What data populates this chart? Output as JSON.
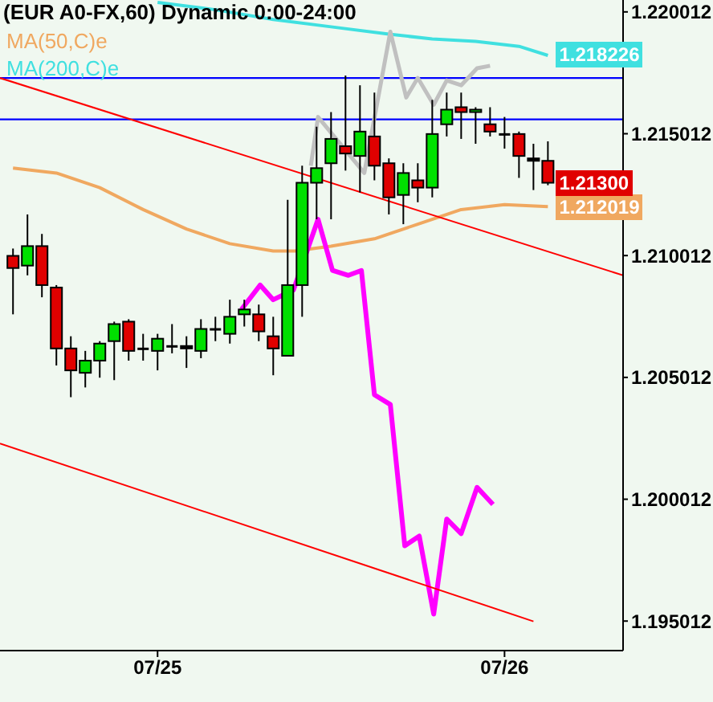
{
  "chart_data": {
    "type": "candlestick",
    "title": "(EUR A0-FX,60) Dynamic 0:00-24:00",
    "x": [
      "--07-24T14:00",
      "--07-24T15:00",
      "--07-24T16:00",
      "--07-24T17:00",
      "--07-24T18:00",
      "--07-24T19:00",
      "--07-24T20:00",
      "--07-24T21:00",
      "--07-24T22:00",
      "--07-24T23:00",
      "--07-25T00:00",
      "--07-25T01:00",
      "--07-25T02:00",
      "--07-25T03:00",
      "--07-25T04:00",
      "--07-25T05:00",
      "--07-25T06:00",
      "--07-25T07:00",
      "--07-25T08:00",
      "--07-25T09:00",
      "--07-25T10:00",
      "--07-25T11:00",
      "--07-25T12:00",
      "--07-25T13:00",
      "--07-25T14:00",
      "--07-25T15:00",
      "--07-25T16:00",
      "--07-25T17:00",
      "--07-25T18:00",
      "--07-25T19:00",
      "--07-25T20:00",
      "--07-25T21:00",
      "--07-25T22:00",
      "--07-25T23:00",
      "--07-26T00:00",
      "--07-26T01:00",
      "--07-26T02:00",
      "--07-26T03:00"
    ],
    "ohlc": [
      [
        1.21,
        1.2103,
        1.2076,
        1.2095
      ],
      [
        1.2096,
        1.2117,
        1.2092,
        1.2104
      ],
      [
        1.2104,
        1.2109,
        1.2083,
        1.2088
      ],
      [
        1.2087,
        1.2088,
        1.2055,
        1.2062
      ],
      [
        1.2062,
        1.2067,
        1.2042,
        1.2053
      ],
      [
        1.2052,
        1.2061,
        1.2046,
        1.2057
      ],
      [
        1.2057,
        1.2065,
        1.205,
        1.2064
      ],
      [
        1.2065,
        1.2073,
        1.2049,
        1.2072
      ],
      [
        1.2073,
        1.2074,
        1.2057,
        1.2061
      ],
      [
        1.2062,
        1.2068,
        1.2057,
        1.2062
      ],
      [
        1.2061,
        1.2068,
        1.2053,
        1.2066
      ],
      [
        1.2063,
        1.2072,
        1.206,
        1.2063
      ],
      [
        1.2063,
        1.2067,
        1.2054,
        1.2062
      ],
      [
        1.2061,
        1.2074,
        1.2058,
        1.207
      ],
      [
        1.207,
        1.2075,
        1.2065,
        1.207
      ],
      [
        1.2068,
        1.2082,
        1.2064,
        1.2075
      ],
      [
        1.2076,
        1.2082,
        1.2071,
        1.2078
      ],
      [
        1.2076,
        1.208,
        1.2065,
        1.2069
      ],
      [
        1.2067,
        1.2075,
        1.2051,
        1.2062
      ],
      [
        1.2059,
        1.2123,
        1.2059,
        1.2088
      ],
      [
        1.2088,
        1.2137,
        1.2075,
        1.213
      ],
      [
        1.213,
        1.2153,
        1.2115,
        1.2136
      ],
      [
        1.2138,
        1.2159,
        1.2115,
        1.2148
      ],
      [
        1.2145,
        1.2174,
        1.2135,
        1.2142
      ],
      [
        1.2141,
        1.217,
        1.2126,
        1.2151
      ],
      [
        1.2149,
        1.2167,
        1.2131,
        1.2137
      ],
      [
        1.2138,
        1.214,
        1.2117,
        1.2124
      ],
      [
        1.2125,
        1.2138,
        1.2113,
        1.2134
      ],
      [
        1.2131,
        1.2138,
        1.2122,
        1.2128
      ],
      [
        1.2128,
        1.2164,
        1.2124,
        1.215
      ],
      [
        1.2154,
        1.2167,
        1.2149,
        1.216
      ],
      [
        1.2161,
        1.2167,
        1.2148,
        1.2159
      ],
      [
        1.2159,
        1.2161,
        1.2146,
        1.216
      ],
      [
        1.2154,
        1.2161,
        1.2149,
        1.2151
      ],
      [
        1.215,
        1.2157,
        1.2144,
        1.215
      ],
      [
        1.215,
        1.2151,
        1.2132,
        1.2141
      ],
      [
        1.214,
        1.2146,
        1.2127,
        1.2139
      ],
      [
        1.2139,
        1.2147,
        1.2129,
        1.213
      ]
    ],
    "value_labels": [
      null,
      null,
      null,
      null,
      null,
      null,
      null,
      null,
      null,
      null,
      null,
      null,
      null,
      null,
      null,
      null,
      null,
      null,
      null,
      null,
      null,
      null,
      null,
      null,
      null,
      null,
      null,
      null,
      null,
      null,
      null,
      null,
      null,
      null,
      null,
      null,
      null,
      "1.21300"
    ],
    "colors": [
      "#e00000",
      "#00e000",
      "#e00000",
      "#e00000",
      "#e00000",
      "#00e000",
      "#00e000",
      "#00e000",
      "#e00000",
      "#000000",
      "#00e000",
      "#000000",
      "#000000",
      "#00e000",
      "#000000",
      "#00e000",
      "#00e000",
      "#e00000",
      "#e00000",
      "#00e000",
      "#00e000",
      "#00e000",
      "#00e000",
      "#e00000",
      "#00e000",
      "#e00000",
      "#e00000",
      "#00e000",
      "#e00000",
      "#00e000",
      "#00e000",
      "#e00000",
      "#00e000",
      "#e00000",
      "#000000",
      "#e00000",
      "#000000",
      "#e00000"
    ],
    "series": [
      {
        "type": "line",
        "name": "MA(50,C)e",
        "color": "#f0a860",
        "x": [
          "--07-24T14:00",
          "--07-24T17:00",
          "--07-24T20:00",
          "--07-24T23:00",
          "--07-25T02:00",
          "--07-25T05:00",
          "--07-25T08:00",
          "--07-25T09:30",
          "--07-25T12:00",
          "--07-25T15:00",
          "--07-25T18:00",
          "--07-25T21:00",
          "--07-26T00:00",
          "--07-26T03:00"
        ],
        "values": [
          1.2136,
          1.2134,
          1.2128,
          1.2119,
          1.2111,
          1.2105,
          1.2102,
          1.2102,
          1.2104,
          1.2107,
          1.2113,
          1.2119,
          1.2121,
          1.212019
        ],
        "value_labels": [
          null,
          null,
          null,
          null,
          null,
          null,
          null,
          null,
          null,
          null,
          null,
          null,
          null,
          "1.212019"
        ]
      },
      {
        "type": "line",
        "name": "MA(200,C)e",
        "color": "#40e0e0",
        "x": [
          "--07-25T00:00",
          "--07-25T04:00",
          "--07-25T08:00",
          "--07-25T12:00",
          "--07-25T16:00",
          "--07-25T19:00",
          "--07-25T22:00",
          "--07-26T01:00",
          "--07-26T03:00"
        ],
        "values": [
          1.2204,
          1.2201,
          1.2197,
          1.2194,
          1.2191,
          1.2189,
          1.2188,
          1.2186,
          1.218226
        ],
        "value_labels": [
          null,
          null,
          null,
          null,
          null,
          null,
          null,
          null,
          "1.218226"
        ]
      },
      {
        "type": "line",
        "color": "#c0c0c0",
        "x": [
          "--07-25T10:36",
          "--07-25T11:06",
          "--07-25T11:48",
          "--07-25T14:18",
          "--07-25T16:06",
          "--07-25T17:12",
          "--07-25T18:00",
          "--07-25T19:06",
          "--07-25T20:00",
          "--07-25T21:00",
          "--07-25T22:06",
          "--07-25T23:00"
        ],
        "values": [
          1.2137,
          1.2157,
          1.2152,
          1.2134,
          1.2192,
          1.2165,
          1.2173,
          1.2162,
          1.2172,
          1.217,
          1.2177,
          1.2178
        ]
      },
      {
        "type": "line",
        "color": "#ff00ff",
        "x": [
          "--07-25T05:48",
          "--07-25T07:06",
          "--07-25T08:00",
          "--07-25T09:24",
          "--07-25T11:06",
          "--07-25T12:06",
          "--07-25T13:12",
          "--07-25T14:06",
          "--07-25T15:00",
          "--07-25T16:06",
          "--07-25T17:06",
          "--07-25T18:06",
          "--07-25T19:06",
          "--07-25T20:00",
          "--07-25T21:00",
          "--07-25T22:06",
          "--07-25T23:12"
        ],
        "values": [
          1.2078,
          1.2088,
          1.2082,
          1.2086,
          1.2115,
          1.2094,
          1.2092,
          1.2094,
          1.2043,
          1.2039,
          1.1981,
          1.1985,
          1.1953,
          1.1992,
          1.1986,
          1.2005,
          1.1998
        ]
      },
      {
        "type": "line",
        "color": "#ff0000",
        "x": [
          "--07-24T13:06",
          "--07-26T08:12"
        ],
        "values": [
          1.2173,
          1.2092
        ]
      },
      {
        "type": "line",
        "color": "#ff0000",
        "x": [
          "--07-24T13:06",
          "--07-26T02:00"
        ],
        "values": [
          1.2023,
          1.195
        ]
      }
    ],
    "ref_lines": [
      {
        "axis": "y",
        "value": 1.2173,
        "color": "#0000ff"
      },
      {
        "axis": "y",
        "value": 1.2156,
        "color": "#0000ff"
      }
    ],
    "xlim": [
      "--07-24T13:06",
      "--07-26T08:12"
    ],
    "ylim": [
      1.1938,
      1.2205
    ],
    "xticks": [
      {
        "value": "--07-25T00:00",
        "label": "07/25"
      },
      {
        "value": "--07-26T00:00",
        "label": "07/26"
      }
    ],
    "yticks": [
      1.195012,
      1.200012,
      1.205012,
      1.210012,
      1.215012,
      1.220012
    ],
    "legend": "top left",
    "grid": false
  }
}
